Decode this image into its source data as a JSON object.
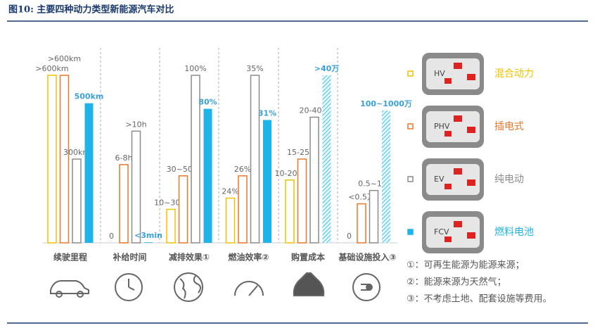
{
  "header": {
    "title": "图10:    主要四种动力类型新能源汽车对比"
  },
  "legend": [
    {
      "code": "HV",
      "name": "混合动力",
      "color": "#f2c200"
    },
    {
      "code": "PHV",
      "name": "插电式",
      "color": "#e8782a"
    },
    {
      "code": "EV",
      "name": "纯电动",
      "color": "#8c8c8c"
    },
    {
      "code": "FCV",
      "name": "燃料电池",
      "color": "#1eb4e8"
    }
  ],
  "chart_data": [
    {
      "type": "bar",
      "title": "续驶里程",
      "values": [
        600,
        600,
        300,
        500
      ],
      "value_labels": [
        ">600km",
        ">600km",
        "300km",
        "500km"
      ],
      "ylim": [
        0,
        600
      ]
    },
    {
      "type": "bar",
      "title": "补给时间",
      "values": [
        0,
        7,
        10,
        0.05
      ],
      "value_labels": [
        "0",
        "6-8h",
        ">10h",
        "<3min"
      ],
      "ylim": [
        0,
        15
      ]
    },
    {
      "type": "bar",
      "title": "减排效果①",
      "values": [
        20,
        40,
        100,
        80
      ],
      "value_labels": [
        "10~30%",
        "30~50%",
        "100%",
        "80%"
      ],
      "ylim": [
        0,
        100
      ]
    },
    {
      "type": "bar",
      "title": "燃油效率②",
      "values": [
        24,
        26,
        35,
        31
      ],
      "value_labels": [
        "24%",
        "26%",
        "35%",
        "31%"
      ],
      "ylim": [
        20,
        35
      ]
    },
    {
      "type": "bar",
      "title": "购置成本",
      "values": [
        15,
        20,
        30,
        40
      ],
      "value_labels": [
        "10-20万",
        "15-25万",
        "20-40万",
        ">40万"
      ],
      "ylim": [
        0,
        40
      ],
      "hatched_series": [
        3
      ]
    },
    {
      "type": "bar",
      "title": "基础设施投入③",
      "values": [
        0,
        0.25,
        0.75,
        550
      ],
      "value_labels": [
        "0",
        "<0.5万",
        "0.5~1万",
        "100~1000万"
      ],
      "ylim": [
        0.01,
        10000
      ],
      "log_scale": true,
      "hatched_series": [
        3
      ]
    }
  ],
  "notes": [
    "①：可再生能源为能源来源；",
    "②：能源来源为天然气；",
    "③：不考虑土地、配套设施等费用。"
  ]
}
